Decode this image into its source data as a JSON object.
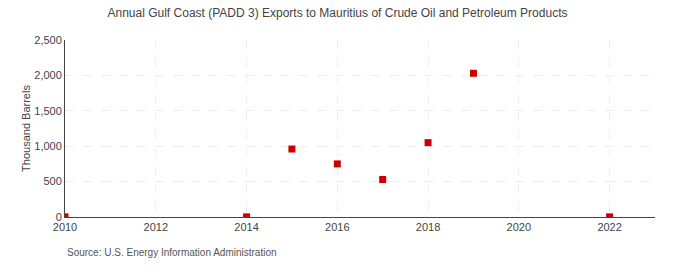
{
  "chart_data": {
    "type": "scatter",
    "title": "Annual Gulf Coast (PADD 3) Exports to Mauritius of Crude Oil and Petroleum Products",
    "ylabel": "Thousand Barrels",
    "annotations": [
      "Source: U.S. Energy Information Administration"
    ],
    "x": [
      2010,
      2014,
      2015,
      2016,
      2017,
      2018,
      2019,
      2022
    ],
    "values": [
      2,
      2,
      960,
      750,
      530,
      1050,
      2030,
      2
    ],
    "color": "#cc0000",
    "marker": "square",
    "xlim": [
      2010,
      2023
    ],
    "xticks": [
      2010,
      2012,
      2014,
      2016,
      2018,
      2020,
      2022
    ],
    "ylim": [
      0,
      2500
    ],
    "yticks": [
      0,
      500,
      {
        "value": 1000,
        "label": "1,000"
      },
      {
        "value": 1500,
        "label": "1,500"
      },
      {
        "value": 2000,
        "label": "2,000"
      },
      {
        "value": 2500,
        "label": "2,500"
      }
    ],
    "grid": true
  }
}
